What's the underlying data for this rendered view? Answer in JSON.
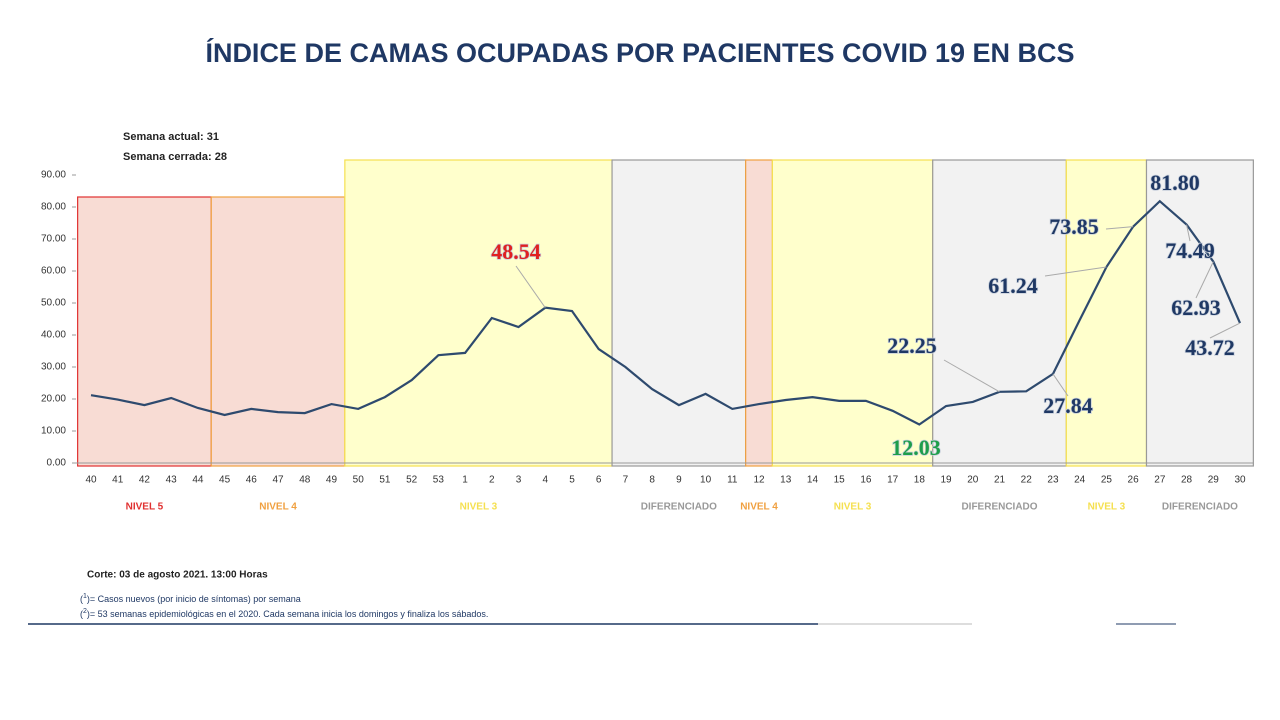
{
  "chart_data": {
    "type": "line",
    "title": "ÍNDICE DE CAMAS OCUPADAS POR PACIENTES COVID 19 EN BCS",
    "info": [
      "Semana actual: 31",
      "Semana cerrada: 28"
    ],
    "categories": [
      "40",
      "41",
      "42",
      "43",
      "44",
      "45",
      "46",
      "47",
      "48",
      "49",
      "50",
      "51",
      "52",
      "53",
      "1",
      "2",
      "3",
      "4",
      "5",
      "6",
      "7",
      "8",
      "9",
      "10",
      "11",
      "12",
      "13",
      "14",
      "15",
      "16",
      "17",
      "18",
      "19",
      "20",
      "21",
      "22",
      "23",
      "24",
      "25",
      "26",
      "27",
      "28",
      "29",
      "30"
    ],
    "series": [
      {
        "color": "#2e4a6e",
        "values": [
          21.2,
          19.8,
          18.1,
          20.3,
          17.2,
          15.0,
          16.9,
          15.9,
          15.6,
          18.4,
          16.9,
          20.6,
          25.9,
          33.7,
          34.4,
          45.3,
          42.5,
          48.54,
          47.5,
          35.6,
          30.0,
          23.1,
          18.1,
          21.6,
          16.9,
          18.4,
          19.7,
          20.6,
          19.4,
          19.4,
          16.3,
          12.03,
          17.8,
          19.1,
          22.25,
          22.4,
          27.84,
          44.7,
          61.24,
          73.85,
          81.8,
          74.49,
          62.93,
          43.72
        ],
        "value_labels": [
          null,
          null,
          null,
          null,
          null,
          null,
          null,
          null,
          null,
          null,
          null,
          null,
          null,
          null,
          null,
          null,
          null,
          "48.54",
          null,
          null,
          null,
          null,
          null,
          null,
          null,
          null,
          null,
          null,
          null,
          null,
          null,
          "12.03",
          null,
          null,
          "22.25",
          null,
          "27.84",
          null,
          "61.24",
          "73.85",
          "81.80",
          "74.49",
          "62.93",
          "43.72"
        ],
        "value_label_colors": [
          null,
          null,
          null,
          null,
          null,
          null,
          null,
          null,
          null,
          null,
          null,
          null,
          null,
          null,
          null,
          null,
          null,
          "#e02020",
          null,
          null,
          null,
          null,
          null,
          null,
          null,
          null,
          null,
          null,
          null,
          null,
          null,
          "#1e9e4a",
          null,
          null,
          "#1f3864",
          null,
          "#1f3864",
          null,
          "#1f3864",
          "#1f3864",
          "#1f3864",
          "#1f3864",
          "#1f3864",
          "#1f3864"
        ]
      }
    ],
    "ylim": [
      0,
      90
    ],
    "yticks": [
      {
        "value": 0,
        "label": "0.00"
      },
      {
        "value": 10,
        "label": "10.00"
      },
      {
        "value": 20,
        "label": "20.00"
      },
      {
        "value": 30,
        "label": "30.00"
      },
      {
        "value": 40,
        "label": "40.00"
      },
      {
        "value": 50,
        "label": "50.00"
      },
      {
        "value": 60,
        "label": "60.00"
      },
      {
        "value": 70,
        "label": "70.00"
      },
      {
        "value": 80,
        "label": "80.00"
      },
      {
        "value": 90,
        "label": "90.00"
      }
    ],
    "bands": [
      {
        "label": "NIVEL 5",
        "start": "40",
        "end": "44",
        "color": "#e03030",
        "fill": "#f8dcd4"
      },
      {
        "label": "NIVEL 4",
        "start": "45",
        "end": "49",
        "color": "#f0a040",
        "fill": "#f8dcd4"
      },
      {
        "label": "NIVEL 3",
        "start": "50",
        "end": "6",
        "color": "#f5e050",
        "fill": "#ffffcc"
      },
      {
        "label": "DIFERENCIADO",
        "start": "7",
        "end": "11",
        "color": "#999999",
        "fill": "#f2f2f2"
      },
      {
        "label": "NIVEL 4",
        "start": "12",
        "end": "12",
        "color": "#f0a040",
        "fill": "#f8dcd4"
      },
      {
        "label": "NIVEL 3",
        "start": "13",
        "end": "18",
        "color": "#f5e050",
        "fill": "#ffffcc"
      },
      {
        "label": "DIFERENCIADO",
        "start": "19",
        "end": "23",
        "color": "#999999",
        "fill": "#f2f2f2"
      },
      {
        "label": "NIVEL 3",
        "start": "24",
        "end": "26",
        "color": "#f5e050",
        "fill": "#ffffcc"
      },
      {
        "label": "DIFERENCIADO",
        "start": "27",
        "end": "30",
        "color": "#999999",
        "fill": "#f2f2f2"
      }
    ],
    "cut": "Corte: 03 de agosto 2021. 13:00 Horas",
    "notes": [
      {
        "pre": "(",
        "sup": "1",
        "post": ")= Casos nuevos (por inicio de síntomas) por semana"
      },
      {
        "pre": "(",
        "sup": "2",
        "post": ")= 53 semanas epidemiológicas en el 2020. Cada semana inicia los domingos y finaliza los sábados."
      }
    ]
  }
}
